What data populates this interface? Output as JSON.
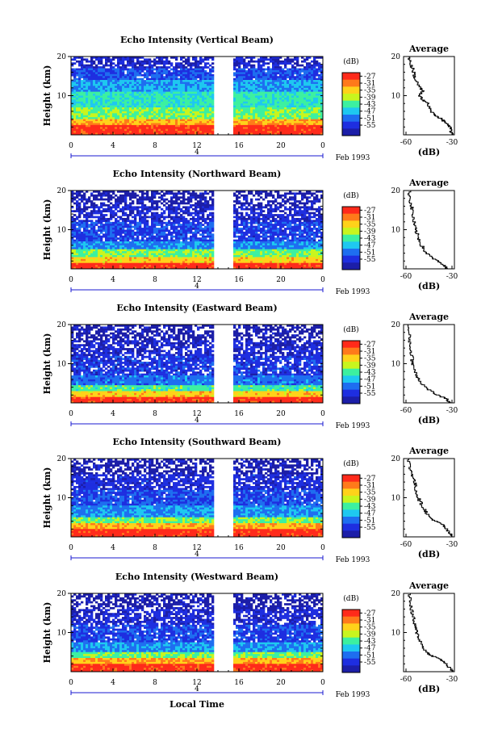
{
  "chart_data": [
    {
      "type": "heatmap",
      "title": "Echo Intensity (Vertical Beam)",
      "ylabel": "Height (km)",
      "ylim": [
        0,
        20
      ],
      "yticks": [
        "20",
        "10"
      ],
      "xlim": [
        0,
        24
      ],
      "xticks": [
        "0",
        "4",
        "8",
        "12",
        "16",
        "20",
        "0"
      ],
      "date_label": "4",
      "month_label": "Feb 1993",
      "gap": [
        13.7,
        15.4
      ],
      "colorbar": {
        "title": "(dB)",
        "ticks": [
          "-27",
          "-31",
          "-35",
          "-39",
          "-43",
          "-47",
          "-51",
          "-55"
        ],
        "colors": [
          "#ff2a1a",
          "#ff7a1a",
          "#ffd21a",
          "#c8f51e",
          "#3cf0a0",
          "#1ec8f0",
          "#1e6ef0",
          "#1e2ee0",
          "#1c1ea8"
        ]
      },
      "bands": [
        {
          "top": 20,
          "level": 0.05
        },
        {
          "top": 17,
          "level": 0.18
        },
        {
          "top": 14,
          "level": 0.32
        },
        {
          "top": 11,
          "level": 0.45
        },
        {
          "top": 7,
          "level": 0.55
        },
        {
          "top": 4,
          "level": 0.8
        },
        {
          "top": 2.5,
          "level": 1.0
        }
      ],
      "average": {
        "title": "Average",
        "xlabel": "(dB)",
        "xticks": [
          "-60",
          "-30"
        ],
        "xlim": [
          -60,
          -30
        ],
        "ylim": [
          0,
          20
        ],
        "yticks": [
          "20",
          "10"
        ],
        "profile": [
          [
            -58,
            20
          ],
          [
            -57,
            18
          ],
          [
            -55,
            16
          ],
          [
            -54,
            14
          ],
          [
            -51,
            12
          ],
          [
            -49,
            11
          ],
          [
            -52,
            10
          ],
          [
            -49,
            9
          ],
          [
            -46,
            8
          ],
          [
            -44,
            6
          ],
          [
            -41,
            5
          ],
          [
            -37,
            4
          ],
          [
            -34,
            3
          ],
          [
            -31,
            1.5
          ],
          [
            -30,
            0
          ]
        ]
      }
    },
    {
      "type": "heatmap",
      "title": "Echo Intensity (Northward Beam)",
      "ylabel": "Height (km)",
      "ylim": [
        0,
        20
      ],
      "yticks": [
        "20",
        "10"
      ],
      "xlim": [
        0,
        24
      ],
      "xticks": [
        "0",
        "4",
        "8",
        "12",
        "16",
        "20",
        "0"
      ],
      "date_label": "4",
      "month_label": "Feb 1993",
      "gap": [
        13.7,
        15.4
      ],
      "colorbar": {
        "title": "(dB)",
        "ticks": [
          "-27",
          "-31",
          "-35",
          "-39",
          "-43",
          "-47",
          "-51",
          "-55"
        ],
        "colors": [
          "#ff2a1a",
          "#ff7a1a",
          "#ffd21a",
          "#c8f51e",
          "#3cf0a0",
          "#1ec8f0",
          "#1e6ef0",
          "#1e2ee0",
          "#1c1ea8"
        ]
      },
      "bands": [
        {
          "top": 20,
          "level": 0.0
        },
        {
          "top": 16,
          "level": 0.08
        },
        {
          "top": 12,
          "level": 0.15
        },
        {
          "top": 7,
          "level": 0.28
        },
        {
          "top": 5,
          "level": 0.55
        },
        {
          "top": 3,
          "level": 0.75
        },
        {
          "top": 1.5,
          "level": 1.0
        }
      ],
      "average": {
        "title": "Average",
        "xlabel": "(dB)",
        "xticks": [
          "-60",
          "-30"
        ],
        "xlim": [
          -60,
          -30
        ],
        "ylim": [
          0,
          20
        ],
        "yticks": [
          "20",
          "10"
        ],
        "profile": [
          [
            -58,
            20
          ],
          [
            -57,
            17
          ],
          [
            -56,
            15
          ],
          [
            -55,
            12
          ],
          [
            -54,
            10
          ],
          [
            -52,
            8
          ],
          [
            -50,
            6
          ],
          [
            -47,
            4
          ],
          [
            -42,
            2.5
          ],
          [
            -36,
            1
          ],
          [
            -33,
            0
          ]
        ]
      }
    },
    {
      "type": "heatmap",
      "title": "Echo Intensity (Eastward Beam)",
      "ylabel": "Height (km)",
      "ylim": [
        0,
        20
      ],
      "yticks": [
        "20",
        "10"
      ],
      "xlim": [
        0,
        24
      ],
      "xticks": [
        "0",
        "4",
        "8",
        "12",
        "16",
        "20",
        "0"
      ],
      "date_label": "4",
      "month_label": "Feb 1993",
      "gap": [
        13.7,
        15.4
      ],
      "colorbar": {
        "title": "(dB)",
        "ticks": [
          "-27",
          "-31",
          "-35",
          "-39",
          "-43",
          "-47",
          "-51",
          "-55"
        ],
        "colors": [
          "#ff2a1a",
          "#ff7a1a",
          "#ffd21a",
          "#c8f51e",
          "#3cf0a0",
          "#1ec8f0",
          "#1e6ef0",
          "#1e2ee0",
          "#1c1ea8"
        ]
      },
      "bands": [
        {
          "top": 20,
          "level": 0.0
        },
        {
          "top": 16,
          "level": 0.07
        },
        {
          "top": 12,
          "level": 0.13
        },
        {
          "top": 7,
          "level": 0.25
        },
        {
          "top": 4.5,
          "level": 0.5
        },
        {
          "top": 3,
          "level": 0.75
        },
        {
          "top": 1.5,
          "level": 1.0
        }
      ],
      "average": {
        "title": "Average",
        "xlabel": "(dB)",
        "xticks": [
          "-60",
          "-30"
        ],
        "xlim": [
          -60,
          -30
        ],
        "ylim": [
          0,
          20
        ],
        "yticks": [
          "20",
          "10"
        ],
        "profile": [
          [
            -59,
            20
          ],
          [
            -58,
            17
          ],
          [
            -57,
            14
          ],
          [
            -56,
            11
          ],
          [
            -55,
            9
          ],
          [
            -53,
            7
          ],
          [
            -50,
            5
          ],
          [
            -46,
            3.5
          ],
          [
            -40,
            2
          ],
          [
            -34,
            1
          ],
          [
            -31,
            0
          ]
        ]
      }
    },
    {
      "type": "heatmap",
      "title": "Echo Intensity (Southward Beam)",
      "ylabel": "Height (km)",
      "ylim": [
        0,
        20
      ],
      "yticks": [
        "20",
        "10"
      ],
      "xlim": [
        0,
        24
      ],
      "xticks": [
        "0",
        "4",
        "8",
        "12",
        "16",
        "20",
        "0"
      ],
      "date_label": "4",
      "month_label": "Feb 1993",
      "gap": [
        13.7,
        15.4
      ],
      "colorbar": {
        "title": "(dB)",
        "ticks": [
          "-27",
          "-31",
          "-35",
          "-39",
          "-43",
          "-47",
          "-51",
          "-55"
        ],
        "colors": [
          "#ff2a1a",
          "#ff7a1a",
          "#ffd21a",
          "#c8f51e",
          "#3cf0a0",
          "#1ec8f0",
          "#1e6ef0",
          "#1e2ee0",
          "#1c1ea8"
        ]
      },
      "bands": [
        {
          "top": 20,
          "level": 0.0
        },
        {
          "top": 16,
          "level": 0.1
        },
        {
          "top": 12,
          "level": 0.18
        },
        {
          "top": 8,
          "level": 0.3
        },
        {
          "top": 5,
          "level": 0.55
        },
        {
          "top": 3.5,
          "level": 0.8
        },
        {
          "top": 2,
          "level": 1.0
        }
      ],
      "average": {
        "title": "Average",
        "xlabel": "(dB)",
        "xticks": [
          "-60",
          "-30"
        ],
        "xlim": [
          -60,
          -30
        ],
        "ylim": [
          0,
          20
        ],
        "yticks": [
          "20",
          "10"
        ],
        "profile": [
          [
            -59,
            20
          ],
          [
            -57,
            17
          ],
          [
            -55,
            15
          ],
          [
            -54,
            13
          ],
          [
            -53,
            11
          ],
          [
            -51,
            9
          ],
          [
            -48,
            7
          ],
          [
            -45,
            5
          ],
          [
            -41,
            4
          ],
          [
            -36,
            3
          ],
          [
            -33,
            1.5
          ],
          [
            -30,
            0
          ]
        ]
      }
    },
    {
      "type": "heatmap",
      "title": "Echo Intensity (Westward Beam)",
      "ylabel": "Height (km)",
      "ylim": [
        0,
        20
      ],
      "yticks": [
        "20",
        "10"
      ],
      "xlim": [
        0,
        24
      ],
      "xticks": [
        "0",
        "4",
        "8",
        "12",
        "16",
        "20",
        "0"
      ],
      "date_label": "4",
      "month_label": "Feb 1993",
      "gap": [
        13.7,
        15.4
      ],
      "xlabel": "Local Time",
      "colorbar": {
        "title": "(dB)",
        "ticks": [
          "-27",
          "-31",
          "-35",
          "-39",
          "-43",
          "-47",
          "-51",
          "-55"
        ],
        "colors": [
          "#ff2a1a",
          "#ff7a1a",
          "#ffd21a",
          "#c8f51e",
          "#3cf0a0",
          "#1ec8f0",
          "#1e6ef0",
          "#1e2ee0",
          "#1c1ea8"
        ]
      },
      "bands": [
        {
          "top": 20,
          "level": 0.0
        },
        {
          "top": 16,
          "level": 0.08
        },
        {
          "top": 12,
          "level": 0.16
        },
        {
          "top": 7.5,
          "level": 0.3
        },
        {
          "top": 5,
          "level": 0.55
        },
        {
          "top": 3.5,
          "level": 0.8
        },
        {
          "top": 2,
          "level": 1.0
        }
      ],
      "average": {
        "title": "Average",
        "xlabel": "(dB)",
        "xticks": [
          "-60",
          "-30"
        ],
        "xlim": [
          -60,
          -30
        ],
        "ylim": [
          0,
          20
        ],
        "yticks": [
          "20",
          "10"
        ],
        "profile": [
          [
            -58,
            20
          ],
          [
            -57,
            17
          ],
          [
            -56,
            15
          ],
          [
            -55,
            13
          ],
          [
            -54,
            11
          ],
          [
            -52,
            9
          ],
          [
            -50,
            7
          ],
          [
            -47,
            5
          ],
          [
            -43,
            4
          ],
          [
            -37,
            3
          ],
          [
            -33,
            1.5
          ],
          [
            -30,
            0
          ]
        ]
      }
    }
  ]
}
